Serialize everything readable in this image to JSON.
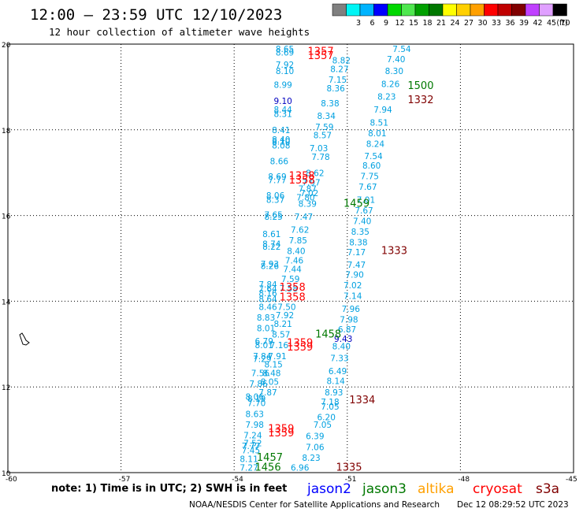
{
  "header": {
    "title": "12:00 – 23:59 UTC 12/10/2023",
    "subtitle": "12 hour collection of altimeter wave heights"
  },
  "legend": {
    "unit": "(ft)",
    "bins": [
      {
        "label": "",
        "color": "#808080"
      },
      {
        "label": "3",
        "color": "#00f5f5"
      },
      {
        "label": "6",
        "color": "#00b4ff"
      },
      {
        "label": "9",
        "color": "#0000ff"
      },
      {
        "label": "12",
        "color": "#00d800"
      },
      {
        "label": "15",
        "color": "#4fe84f"
      },
      {
        "label": "18",
        "color": "#00a000"
      },
      {
        "label": "21",
        "color": "#007800"
      },
      {
        "label": "24",
        "color": "#ffff00"
      },
      {
        "label": "27",
        "color": "#ffd000"
      },
      {
        "label": "30",
        "color": "#ffa000"
      },
      {
        "label": "33",
        "color": "#ff0000"
      },
      {
        "label": "36",
        "color": "#c00000"
      },
      {
        "label": "39",
        "color": "#800000"
      },
      {
        "label": "42",
        "color": "#c040ff"
      },
      {
        "label": "45",
        "color": "#e0a0ff"
      },
      {
        "label": "70",
        "color": "#000000"
      }
    ]
  },
  "chart_data": {
    "type": "scatter",
    "xlim": [
      -60,
      -45
    ],
    "ylim": [
      10,
      20
    ],
    "xticks": [
      "-60",
      "-57",
      "-54",
      "-51",
      "-48",
      "-45"
    ],
    "yticks": [
      "10",
      "12",
      "14",
      "16",
      "18",
      "20"
    ],
    "grid": true,
    "wave_color": "#00a0e0",
    "high_wave_color": "#0000c0",
    "values": [
      {
        "x": -52.9,
        "y": 19.82,
        "v": "8.65"
      },
      {
        "x": -52.9,
        "y": 19.73,
        "v": "8.69"
      },
      {
        "x": -52.9,
        "y": 19.45,
        "v": "7.92"
      },
      {
        "x": -52.9,
        "y": 19.3,
        "v": "8.10"
      },
      {
        "x": -52.95,
        "y": 18.98,
        "v": "8.99"
      },
      {
        "x": -52.95,
        "y": 18.6,
        "v": "9.10"
      },
      {
        "x": -52.95,
        "y": 18.4,
        "v": "8.44"
      },
      {
        "x": -52.95,
        "y": 18.3,
        "v": "8.31"
      },
      {
        "x": -53.0,
        "y": 17.92,
        "v": "8.41"
      },
      {
        "x": -53.0,
        "y": 17.7,
        "v": "8.40"
      },
      {
        "x": -53.0,
        "y": 17.66,
        "v": "8.10"
      },
      {
        "x": -53.0,
        "y": 17.56,
        "v": "8.08"
      },
      {
        "x": -53.05,
        "y": 17.2,
        "v": "8.66"
      },
      {
        "x": -53.1,
        "y": 16.84,
        "v": "8.69"
      },
      {
        "x": -53.1,
        "y": 16.76,
        "v": "7.77"
      },
      {
        "x": -53.15,
        "y": 16.4,
        "v": "8.06"
      },
      {
        "x": -53.15,
        "y": 16.3,
        "v": "8.37"
      },
      {
        "x": -53.2,
        "y": 15.95,
        "v": "7.65"
      },
      {
        "x": -53.2,
        "y": 15.9,
        "v": "8.25"
      },
      {
        "x": -53.25,
        "y": 15.5,
        "v": "8.61"
      },
      {
        "x": -53.25,
        "y": 15.27,
        "v": "8.74"
      },
      {
        "x": -53.25,
        "y": 15.2,
        "v": "8.22"
      },
      {
        "x": -53.3,
        "y": 14.8,
        "v": "7.93"
      },
      {
        "x": -53.3,
        "y": 14.75,
        "v": "8.26"
      },
      {
        "x": -53.35,
        "y": 14.32,
        "v": "7.84"
      },
      {
        "x": -53.35,
        "y": 14.22,
        "v": "7.64"
      },
      {
        "x": -53.35,
        "y": 14.12,
        "v": "8.16"
      },
      {
        "x": -53.35,
        "y": 13.98,
        "v": "8.64"
      },
      {
        "x": -53.35,
        "y": 13.8,
        "v": "8.46"
      },
      {
        "x": -53.4,
        "y": 13.55,
        "v": "8.83"
      },
      {
        "x": -53.4,
        "y": 13.3,
        "v": "8.01"
      },
      {
        "x": -53.45,
        "y": 13.0,
        "v": "6.79"
      },
      {
        "x": -53.45,
        "y": 12.9,
        "v": "8.01"
      },
      {
        "x": -53.5,
        "y": 12.65,
        "v": "7.84"
      },
      {
        "x": -53.5,
        "y": 12.58,
        "v": "7.29"
      },
      {
        "x": -53.55,
        "y": 12.25,
        "v": "7.56"
      },
      {
        "x": -53.6,
        "y": 12.0,
        "v": "7.86"
      },
      {
        "x": -53.65,
        "y": 11.65,
        "v": "8.19"
      },
      {
        "x": -53.65,
        "y": 11.55,
        "v": "7.70"
      },
      {
        "x": -53.7,
        "y": 11.7,
        "v": "8.06"
      },
      {
        "x": -53.7,
        "y": 11.3,
        "v": "8.63"
      },
      {
        "x": -53.7,
        "y": 11.05,
        "v": "7.98"
      },
      {
        "x": -53.75,
        "y": 10.8,
        "v": "7.24"
      },
      {
        "x": -53.75,
        "y": 10.62,
        "v": "7.52"
      },
      {
        "x": -53.8,
        "y": 10.55,
        "v": "7.77"
      },
      {
        "x": -53.8,
        "y": 10.45,
        "v": "7.45"
      },
      {
        "x": -53.85,
        "y": 10.25,
        "v": "8.11"
      },
      {
        "x": -53.85,
        "y": 10.05,
        "v": "7.27"
      },
      {
        "x": -52.5,
        "y": 10.05,
        "v": "6.96"
      },
      {
        "x": -52.2,
        "y": 10.28,
        "v": "8.23"
      },
      {
        "x": -52.1,
        "y": 10.52,
        "v": "7.06"
      },
      {
        "x": -52.1,
        "y": 10.78,
        "v": "6.39"
      },
      {
        "x": -51.9,
        "y": 11.05,
        "v": "7.05"
      },
      {
        "x": -51.8,
        "y": 11.22,
        "v": "6.20"
      },
      {
        "x": -51.7,
        "y": 11.47,
        "v": "7.05"
      },
      {
        "x": -51.7,
        "y": 11.58,
        "v": "7.18"
      },
      {
        "x": -51.6,
        "y": 11.8,
        "v": "8.93"
      },
      {
        "x": -51.55,
        "y": 12.07,
        "v": "8.14"
      },
      {
        "x": -51.5,
        "y": 12.3,
        "v": "6.49"
      },
      {
        "x": -51.45,
        "y": 12.6,
        "v": "7.33"
      },
      {
        "x": -51.4,
        "y": 12.88,
        "v": "8.40"
      },
      {
        "x": -51.35,
        "y": 13.05,
        "v": "9.43"
      },
      {
        "x": -51.25,
        "y": 13.27,
        "v": "6.87"
      },
      {
        "x": -51.2,
        "y": 13.5,
        "v": "7.98"
      },
      {
        "x": -51.15,
        "y": 13.75,
        "v": "7.96"
      },
      {
        "x": -51.1,
        "y": 14.05,
        "v": "7.14"
      },
      {
        "x": -51.1,
        "y": 14.3,
        "v": "7.02"
      },
      {
        "x": -51.05,
        "y": 14.55,
        "v": "7.90"
      },
      {
        "x": -51.0,
        "y": 14.78,
        "v": "7.47"
      },
      {
        "x": -51.0,
        "y": 15.07,
        "v": "7.17"
      },
      {
        "x": -50.95,
        "y": 15.3,
        "v": "8.38"
      },
      {
        "x": -50.9,
        "y": 15.55,
        "v": "8.35"
      },
      {
        "x": -50.85,
        "y": 15.8,
        "v": "7.40"
      },
      {
        "x": -50.8,
        "y": 16.05,
        "v": "7.67"
      },
      {
        "x": -50.75,
        "y": 16.3,
        "v": "7.01"
      },
      {
        "x": -50.7,
        "y": 16.6,
        "v": "7.67"
      },
      {
        "x": -50.65,
        "y": 16.85,
        "v": "7.75"
      },
      {
        "x": -50.6,
        "y": 17.1,
        "v": "8.60"
      },
      {
        "x": -50.55,
        "y": 17.32,
        "v": "7.54"
      },
      {
        "x": -50.5,
        "y": 17.6,
        "v": "8.24"
      },
      {
        "x": -50.45,
        "y": 17.85,
        "v": "8.01"
      },
      {
        "x": -50.4,
        "y": 18.1,
        "v": "8.51"
      },
      {
        "x": -50.3,
        "y": 18.4,
        "v": "7.94"
      },
      {
        "x": -50.2,
        "y": 18.7,
        "v": "8.23"
      },
      {
        "x": -50.1,
        "y": 19.0,
        "v": "8.26"
      },
      {
        "x": -50.0,
        "y": 19.3,
        "v": "8.30"
      },
      {
        "x": -49.95,
        "y": 19.58,
        "v": "7.40"
      },
      {
        "x": -49.8,
        "y": 19.82,
        "v": "7.54"
      },
      {
        "x": -52.25,
        "y": 16.45,
        "v": "7.02"
      },
      {
        "x": -52.1,
        "y": 16.92,
        "v": "8.62"
      },
      {
        "x": -52.3,
        "y": 16.2,
        "v": "8.39"
      },
      {
        "x": -52.4,
        "y": 15.9,
        "v": "7.47"
      },
      {
        "x": -52.5,
        "y": 15.6,
        "v": "7.62"
      },
      {
        "x": -52.55,
        "y": 15.35,
        "v": "7.85"
      },
      {
        "x": -52.6,
        "y": 15.1,
        "v": "8.40"
      },
      {
        "x": -52.65,
        "y": 14.88,
        "v": "7.46"
      },
      {
        "x": -52.7,
        "y": 14.68,
        "v": "7.44"
      },
      {
        "x": -52.75,
        "y": 14.45,
        "v": "7.59"
      },
      {
        "x": -52.8,
        "y": 14.23,
        "v": "7.58"
      },
      {
        "x": -52.85,
        "y": 13.8,
        "v": "7.50"
      },
      {
        "x": -52.9,
        "y": 13.6,
        "v": "7.92"
      },
      {
        "x": -52.95,
        "y": 13.4,
        "v": "8.21"
      },
      {
        "x": -53.0,
        "y": 13.15,
        "v": "8.57"
      },
      {
        "x": -53.05,
        "y": 12.9,
        "v": "7.16"
      },
      {
        "x": -53.1,
        "y": 12.65,
        "v": "7.91"
      },
      {
        "x": -53.2,
        "y": 12.45,
        "v": "8.15"
      },
      {
        "x": -53.25,
        "y": 12.25,
        "v": "8.48"
      },
      {
        "x": -53.3,
        "y": 12.05,
        "v": "8.05"
      },
      {
        "x": -53.35,
        "y": 11.8,
        "v": "7.87"
      },
      {
        "x": -52.0,
        "y": 17.5,
        "v": "7.03"
      },
      {
        "x": -51.95,
        "y": 17.3,
        "v": "7.78"
      },
      {
        "x": -51.9,
        "y": 17.8,
        "v": "8.57"
      },
      {
        "x": -51.85,
        "y": 18.0,
        "v": "7.59"
      },
      {
        "x": -51.8,
        "y": 18.25,
        "v": "8.34"
      },
      {
        "x": -51.7,
        "y": 18.55,
        "v": "8.38"
      },
      {
        "x": -51.55,
        "y": 18.9,
        "v": "8.36"
      },
      {
        "x": -51.5,
        "y": 19.1,
        "v": "7.15"
      },
      {
        "x": -51.45,
        "y": 19.35,
        "v": "8.27"
      },
      {
        "x": -51.4,
        "y": 19.55,
        "v": "8.82"
      },
      {
        "x": -52.2,
        "y": 16.7,
        "v": "7.97"
      },
      {
        "x": -52.3,
        "y": 16.55,
        "v": "7.87"
      },
      {
        "x": -52.35,
        "y": 16.35,
        "v": "7.80"
      }
    ],
    "times": [
      {
        "x": -52.05,
        "y": 19.75,
        "t": "1357",
        "sat": "cryosat"
      },
      {
        "x": -52.05,
        "y": 19.65,
        "t": "1357",
        "sat": "cryosat"
      },
      {
        "x": -49.4,
        "y": 18.95,
        "t": "1500",
        "sat": "jason3"
      },
      {
        "x": -49.4,
        "y": 18.62,
        "t": "1332",
        "sat": "s3a"
      },
      {
        "x": -52.55,
        "y": 16.85,
        "t": "1358",
        "sat": "cryosat"
      },
      {
        "x": -52.55,
        "y": 16.75,
        "t": "1358",
        "sat": "cryosat"
      },
      {
        "x": -51.1,
        "y": 16.2,
        "t": "1459",
        "sat": "jason3"
      },
      {
        "x": -50.1,
        "y": 15.1,
        "t": "1333",
        "sat": "s3a"
      },
      {
        "x": -52.8,
        "y": 14.25,
        "t": "1358",
        "sat": "cryosat"
      },
      {
        "x": -52.8,
        "y": 14.02,
        "t": "1358",
        "sat": "cryosat"
      },
      {
        "x": -51.85,
        "y": 13.15,
        "t": "1458",
        "sat": "jason3"
      },
      {
        "x": -52.6,
        "y": 12.95,
        "t": "1359",
        "sat": "cryosat"
      },
      {
        "x": -52.6,
        "y": 12.85,
        "t": "1359",
        "sat": "cryosat"
      },
      {
        "x": -50.95,
        "y": 11.62,
        "t": "1334",
        "sat": "s3a"
      },
      {
        "x": -53.1,
        "y": 10.95,
        "t": "1359",
        "sat": "cryosat"
      },
      {
        "x": -53.1,
        "y": 10.85,
        "t": "1359",
        "sat": "cryosat"
      },
      {
        "x": -53.4,
        "y": 10.28,
        "t": "1457",
        "sat": "jason3"
      },
      {
        "x": -53.45,
        "y": 10.05,
        "t": "1456",
        "sat": "jason3"
      },
      {
        "x": -51.3,
        "y": 10.05,
        "t": "1335",
        "sat": "s3a"
      }
    ],
    "satellites": [
      {
        "key": "jason2",
        "name": "jason2",
        "color": "#0000ff"
      },
      {
        "key": "jason3",
        "name": "jason3",
        "color": "#007800"
      },
      {
        "key": "altika",
        "name": "altika",
        "color": "#ffa000"
      },
      {
        "key": "cryosat",
        "name": "cryosat",
        "color": "#ff0000"
      },
      {
        "key": "s3a",
        "name": "s3a",
        "color": "#800000"
      }
    ]
  },
  "footer": {
    "note": "note: 1) Time is in UTC; 2) SWH is in feet",
    "credit": "NOAA/NESDIS Center for Satellite Applications and Research",
    "generated": "Dec 12 08:29:52 UTC 2023"
  }
}
